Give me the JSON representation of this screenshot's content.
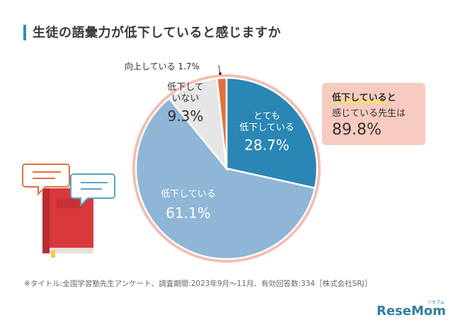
{
  "title": "生徒の語彙力が低下していると感じますか",
  "callout": {
    "line1_highlight": "低下している",
    "line1_rest": "と",
    "line2": "感じている先生は",
    "value": "89.8%"
  },
  "note": "※タイトル:全国学習塾先生アンケート、調査期間:2023年9月〜11月、有効回答数:334［株式会社SRJ］",
  "logo": {
    "text": "ReseMom",
    "sub": "リセマム"
  },
  "colors": {
    "accent": "#2e8fb0",
    "slice1": "#2a86b4",
    "slice2": "#8fb6d6",
    "slice3": "#e6e6e6",
    "slice4": "#e2703e",
    "border": "#f2bdb1"
  },
  "chart_data": {
    "type": "pie",
    "slices": [
      {
        "label_lines": [
          "とても",
          "低下している"
        ],
        "value": 28.7,
        "value_label": "28.7%"
      },
      {
        "label_lines": [
          "低下している"
        ],
        "value": 61.1,
        "value_label": "61.1%"
      },
      {
        "label_lines": [
          "低下して",
          "いない"
        ],
        "value": 9.3,
        "value_label": "9.3%"
      },
      {
        "label_lines": [
          "向上している"
        ],
        "value": 1.7,
        "value_label": "1.7%"
      }
    ]
  }
}
